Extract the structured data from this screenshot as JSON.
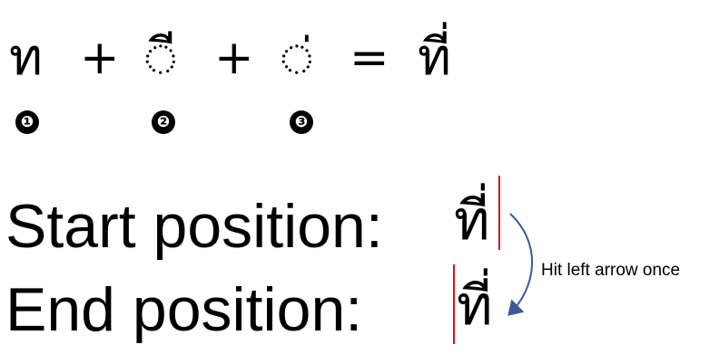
{
  "equation": {
    "base_char": "ท",
    "plus_1": "+",
    "mark_2": "◌ี",
    "plus_2": "+",
    "mark_3": "◌่",
    "equals": "=",
    "result": "ที่"
  },
  "badges": [
    "❶",
    "❷",
    "❸"
  ],
  "rows": {
    "start_label": "Start position:",
    "start_glyph": "ที่",
    "end_label": "End position:",
    "end_glyph": "ที่"
  },
  "annotation": {
    "text": "Hit left arrow once",
    "arrow_color": "#3a5a9a"
  },
  "colors": {
    "cursor": "#e0141b"
  }
}
